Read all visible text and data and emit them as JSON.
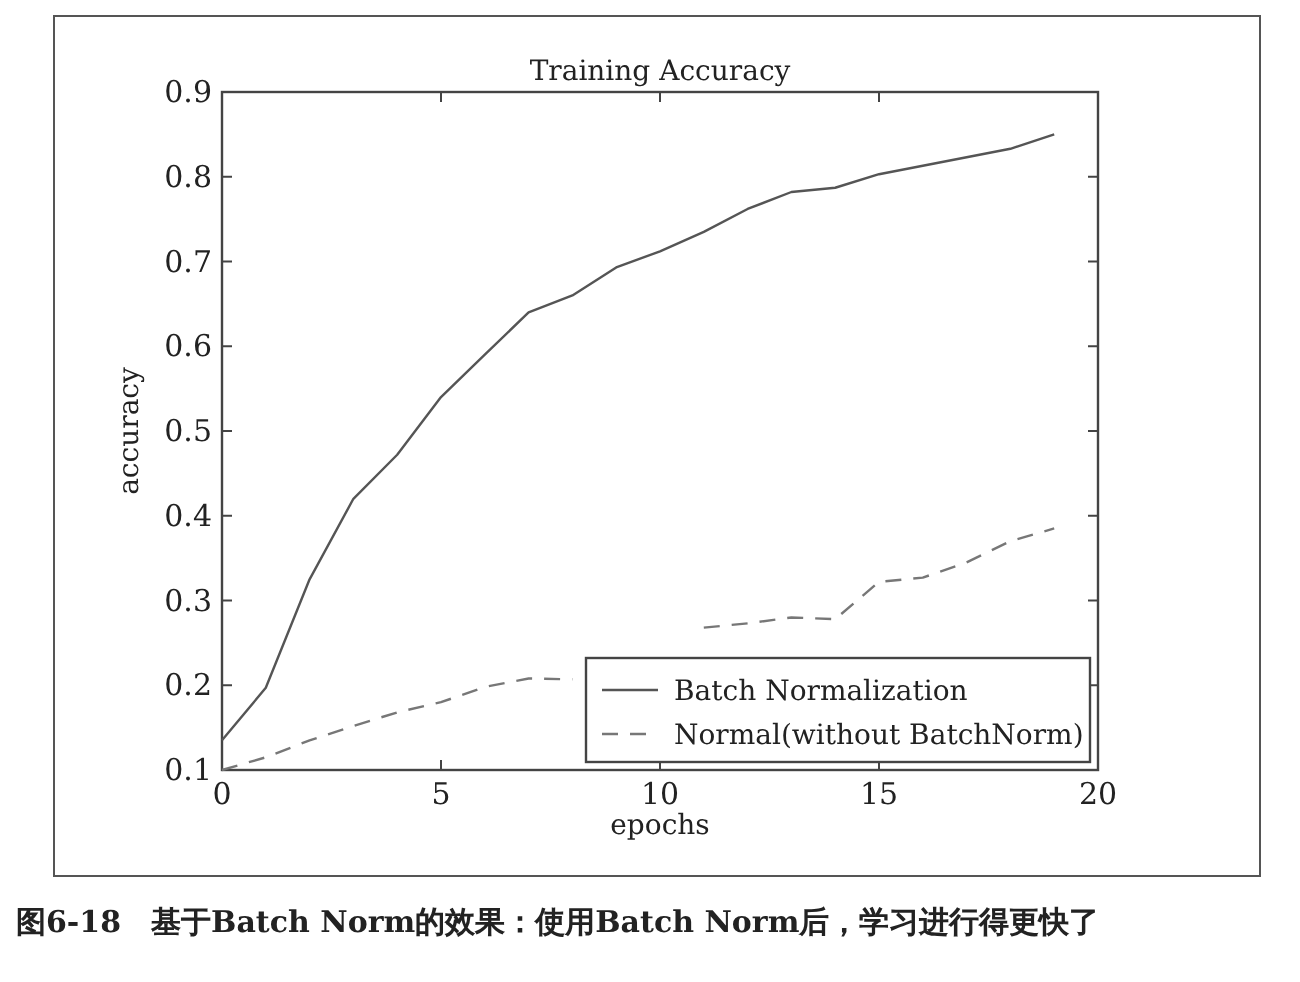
{
  "chart_data": {
    "type": "line",
    "title": "Training Accuracy",
    "xlabel": "epochs",
    "ylabel": "accuracy",
    "x": [
      0,
      1,
      2,
      3,
      4,
      5,
      6,
      7,
      8,
      9,
      10,
      11,
      12,
      13,
      14,
      15,
      16,
      17,
      18,
      19
    ],
    "series": [
      {
        "name": "Batch Normalization",
        "color": "#555555",
        "line_style": "solid",
        "values": [
          0.135,
          0.197,
          0.325,
          0.42,
          0.472,
          0.54,
          0.59,
          0.64,
          0.66,
          0.693,
          0.712,
          0.735,
          0.762,
          0.782,
          0.787,
          0.803,
          0.813,
          0.823,
          0.833,
          0.85
        ]
      },
      {
        "name": "Normal(without BatchNorm)",
        "color": "#777777",
        "line_style": "dashed",
        "values": [
          0.1,
          0.115,
          0.135,
          0.152,
          0.168,
          0.18,
          0.198,
          0.208,
          0.207,
          null,
          null,
          0.268,
          0.273,
          0.28,
          0.278,
          0.322,
          0.327,
          0.345,
          0.37,
          0.385
        ]
      }
    ],
    "xlim": [
      0,
      20
    ],
    "xticks": [
      0,
      5,
      10,
      15,
      20
    ],
    "ylim": [
      0.1,
      0.9
    ],
    "yticks": [
      0.1,
      0.2,
      0.3,
      0.4,
      0.5,
      0.6,
      0.7,
      0.8,
      0.9
    ],
    "grid": false,
    "legend": "bottom right",
    "marker": "none",
    "annotations": [
      "图6-18　基于Batch Norm的效果：使用Batch Norm后，学习进行得更快了"
    ]
  }
}
